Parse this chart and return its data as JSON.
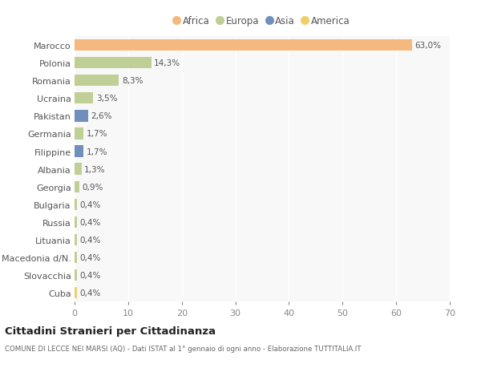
{
  "countries": [
    "Marocco",
    "Polonia",
    "Romania",
    "Ucraina",
    "Pakistan",
    "Germania",
    "Filippine",
    "Albania",
    "Georgia",
    "Bulgaria",
    "Russia",
    "Lituania",
    "Macedonia d/N.",
    "Slovacchia",
    "Cuba"
  ],
  "values": [
    63.0,
    14.3,
    8.3,
    3.5,
    2.6,
    1.7,
    1.7,
    1.3,
    0.9,
    0.4,
    0.4,
    0.4,
    0.4,
    0.4,
    0.4
  ],
  "labels": [
    "63,0%",
    "14,3%",
    "8,3%",
    "3,5%",
    "2,6%",
    "1,7%",
    "1,7%",
    "1,3%",
    "0,9%",
    "0,4%",
    "0,4%",
    "0,4%",
    "0,4%",
    "0,4%",
    "0,4%"
  ],
  "categories": [
    "Africa",
    "Europa",
    "Asia",
    "America"
  ],
  "continents": [
    "Africa",
    "Europa",
    "Europa",
    "Europa",
    "Asia",
    "Europa",
    "Asia",
    "Europa",
    "Europa",
    "Europa",
    "Europa",
    "Europa",
    "Europa",
    "Europa",
    "America"
  ],
  "colors": {
    "Africa": "#F5B97F",
    "Europa": "#BFCF96",
    "Asia": "#7090BB",
    "America": "#F0CE6A"
  },
  "bg_color": "#FFFFFF",
  "plot_bg_color": "#F8F8F8",
  "title": "Cittadini Stranieri per Cittadinanza",
  "subtitle": "COMUNE DI LECCE NEI MARSI (AQ) - Dati ISTAT al 1° gennaio di ogni anno - Elaborazione TUTTITALIA.IT",
  "xlim": [
    0,
    70
  ],
  "xticks": [
    0,
    10,
    20,
    30,
    40,
    50,
    60,
    70
  ]
}
